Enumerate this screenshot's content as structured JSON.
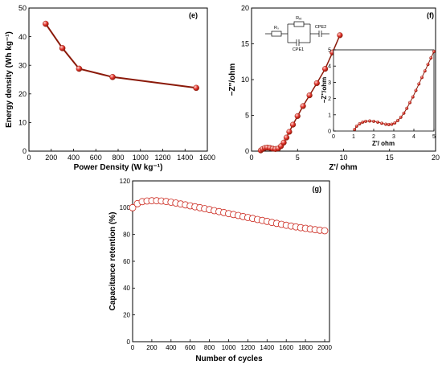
{
  "colors": {
    "line": "#8b1a0a",
    "marker": "#e0302a",
    "marker_hi": "#ffd7d0",
    "marker_open": "#cc2a20"
  },
  "chart_data": [
    {
      "id": "e",
      "type": "line",
      "panel_label": "(e)",
      "xlabel": "Power Density (W kg⁻¹)",
      "ylabel": "Energy density (Wh kg⁻¹)",
      "xlim": [
        0,
        1600
      ],
      "ylim": [
        0,
        50
      ],
      "xticks": [
        0,
        200,
        400,
        600,
        800,
        1000,
        1200,
        1400,
        1600
      ],
      "yticks": [
        0,
        10,
        20,
        30,
        40,
        50
      ],
      "x": [
        150,
        300,
        450,
        750,
        1500
      ],
      "y": [
        44.5,
        36,
        28.8,
        25.9,
        22.1
      ],
      "grid": false
    },
    {
      "id": "f",
      "type": "scatter",
      "panel_label": "(f)",
      "xlabel": "Z'/ ohm",
      "ylabel": "−Z''/ohm",
      "xlim": [
        0,
        20
      ],
      "ylim": [
        0,
        20
      ],
      "xticks": [
        0,
        5,
        10,
        15,
        20
      ],
      "yticks": [
        0,
        5,
        10,
        15,
        20
      ],
      "x": [
        1.0,
        1.2,
        1.45,
        1.7,
        2.0,
        2.3,
        2.6,
        2.9,
        3.2,
        3.5,
        3.8,
        4.1,
        4.5,
        5.0,
        5.6,
        6.3,
        7.1,
        8.0,
        8.8,
        9.6
      ],
      "y": [
        0.1,
        0.3,
        0.45,
        0.5,
        0.45,
        0.35,
        0.3,
        0.38,
        0.7,
        1.2,
        1.9,
        2.7,
        3.7,
        4.9,
        6.3,
        7.8,
        9.5,
        11.5,
        13.8,
        16.2
      ],
      "circuit_labels": [
        "Rₛ",
        "Rₑₜ",
        "CPE1",
        "CPE2"
      ],
      "inset": {
        "xlabel": "Z'/ ohm",
        "ylabel": "−Z''/ohm",
        "xlim": [
          0,
          5
        ],
        "ylim": [
          0,
          5
        ],
        "xticks": [
          0,
          1,
          2,
          3,
          4,
          5
        ],
        "yticks": [
          0,
          1,
          2,
          3,
          4,
          5
        ],
        "x": [
          1.05,
          1.15,
          1.3,
          1.45,
          1.6,
          1.8,
          2.0,
          2.2,
          2.4,
          2.6,
          2.75,
          2.9,
          3.05,
          3.2,
          3.35,
          3.5,
          3.65,
          3.8,
          3.95,
          4.1,
          4.25,
          4.4,
          4.55,
          4.7,
          4.85,
          5.0
        ],
        "y": [
          0.1,
          0.3,
          0.45,
          0.55,
          0.6,
          0.62,
          0.6,
          0.55,
          0.48,
          0.42,
          0.4,
          0.42,
          0.5,
          0.65,
          0.85,
          1.1,
          1.4,
          1.75,
          2.1,
          2.5,
          2.9,
          3.3,
          3.7,
          4.1,
          4.5,
          4.9
        ]
      }
    },
    {
      "id": "g",
      "type": "scatter",
      "panel_label": "(g)",
      "xlabel": "Number of cycles",
      "ylabel": "Capacitance retention (%)",
      "xlim": [
        0,
        2050
      ],
      "ylim": [
        0,
        120
      ],
      "xticks": [
        0,
        200,
        400,
        600,
        800,
        1000,
        1200,
        1400,
        1600,
        1800,
        2000
      ],
      "yticks": [
        0,
        20,
        40,
        60,
        80,
        100,
        120
      ],
      "x": [
        0,
        50,
        100,
        150,
        200,
        250,
        300,
        350,
        400,
        450,
        500,
        550,
        600,
        650,
        700,
        750,
        800,
        850,
        900,
        950,
        1000,
        1050,
        1100,
        1150,
        1200,
        1250,
        1300,
        1350,
        1400,
        1450,
        1500,
        1550,
        1600,
        1650,
        1700,
        1750,
        1800,
        1850,
        1900,
        1950,
        2000
      ],
      "y": [
        100,
        103,
        104.5,
        105,
        105.2,
        105.2,
        105,
        104.6,
        104.1,
        103.5,
        102.8,
        102.1,
        101.4,
        100.7,
        100,
        99.3,
        98.6,
        97.8,
        97.1,
        96.4,
        95.6,
        94.9,
        94.2,
        93.4,
        92.7,
        92,
        91.2,
        90.5,
        89.8,
        89.0,
        88.3,
        87.6,
        86.9,
        86.3,
        85.7,
        85.1,
        84.6,
        84.1,
        83.6,
        83.2,
        82.8
      ],
      "grid": false
    }
  ]
}
